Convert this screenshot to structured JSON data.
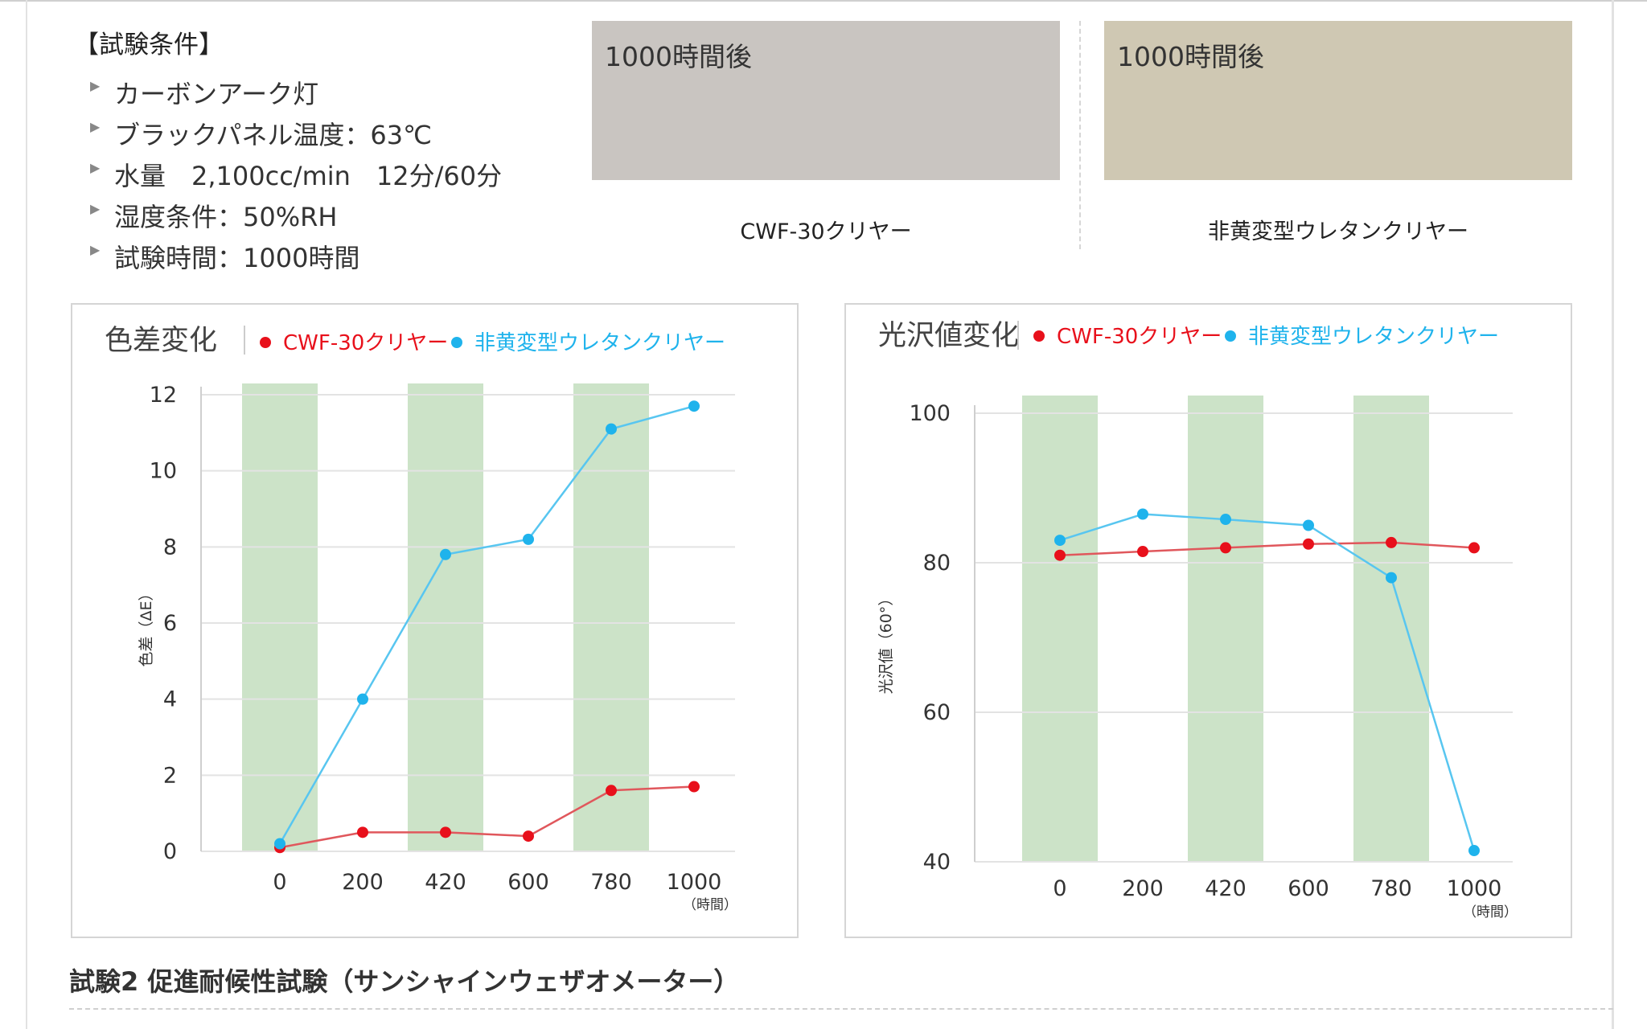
{
  "conditions": {
    "title": "【試験条件】",
    "items": [
      "カーボンアーク灯",
      "ブラックパネル温度：63℃",
      "水量　2,100cc/min　12分/60分",
      "湿度条件：50%RH",
      "試験時間：1000時間"
    ]
  },
  "samples": [
    {
      "label": "1000時間後",
      "caption": "CWF-30クリヤー",
      "color": "#c9c5c1"
    },
    {
      "label": "1000時間後",
      "caption": "非黄変型ウレタンクリヤー",
      "color": "#cfc8b3"
    }
  ],
  "colors": {
    "cwf": "#e8101b",
    "urethane": "#1fb3ec",
    "band": "#cce3c8",
    "grid": "#e3e3e3",
    "line_cwf": "#e0575c",
    "line_urethane": "#58c6f0"
  },
  "chart_data": [
    {
      "type": "line",
      "title": "色差変化",
      "categories": [
        "0",
        "200",
        "420",
        "600",
        "780",
        "1000"
      ],
      "x_unit": "（時間）",
      "ylabel": "色差（ΔE）",
      "ylim": [
        0,
        12
      ],
      "yticks": [
        0,
        2,
        4,
        6,
        8,
        10,
        12
      ],
      "grid": true,
      "legend_position": "top",
      "series": [
        {
          "name": "CWF-30クリヤー",
          "values": [
            0.1,
            0.5,
            0.5,
            0.4,
            1.6,
            1.7
          ]
        },
        {
          "name": "非黄変型ウレタンクリヤー",
          "values": [
            0.2,
            4.0,
            7.8,
            8.2,
            11.1,
            11.7
          ]
        }
      ]
    },
    {
      "type": "line",
      "title": "光沢値変化",
      "categories": [
        "0",
        "200",
        "420",
        "600",
        "780",
        "1000"
      ],
      "x_unit": "（時間）",
      "ylabel": "光沢値（60°）",
      "ylim": [
        40,
        100
      ],
      "yticks": [
        40,
        60,
        80,
        100
      ],
      "grid": true,
      "legend_position": "top",
      "series": [
        {
          "name": "CWF-30クリヤー",
          "values": [
            81,
            81.5,
            82,
            82.5,
            82.7,
            82
          ]
        },
        {
          "name": "非黄変型ウレタンクリヤー",
          "values": [
            83,
            86.5,
            85.8,
            85,
            78,
            41.5
          ]
        }
      ]
    }
  ],
  "bottom_heading": "試験2 促進耐候性試験（サンシャインウェザオメーター）"
}
